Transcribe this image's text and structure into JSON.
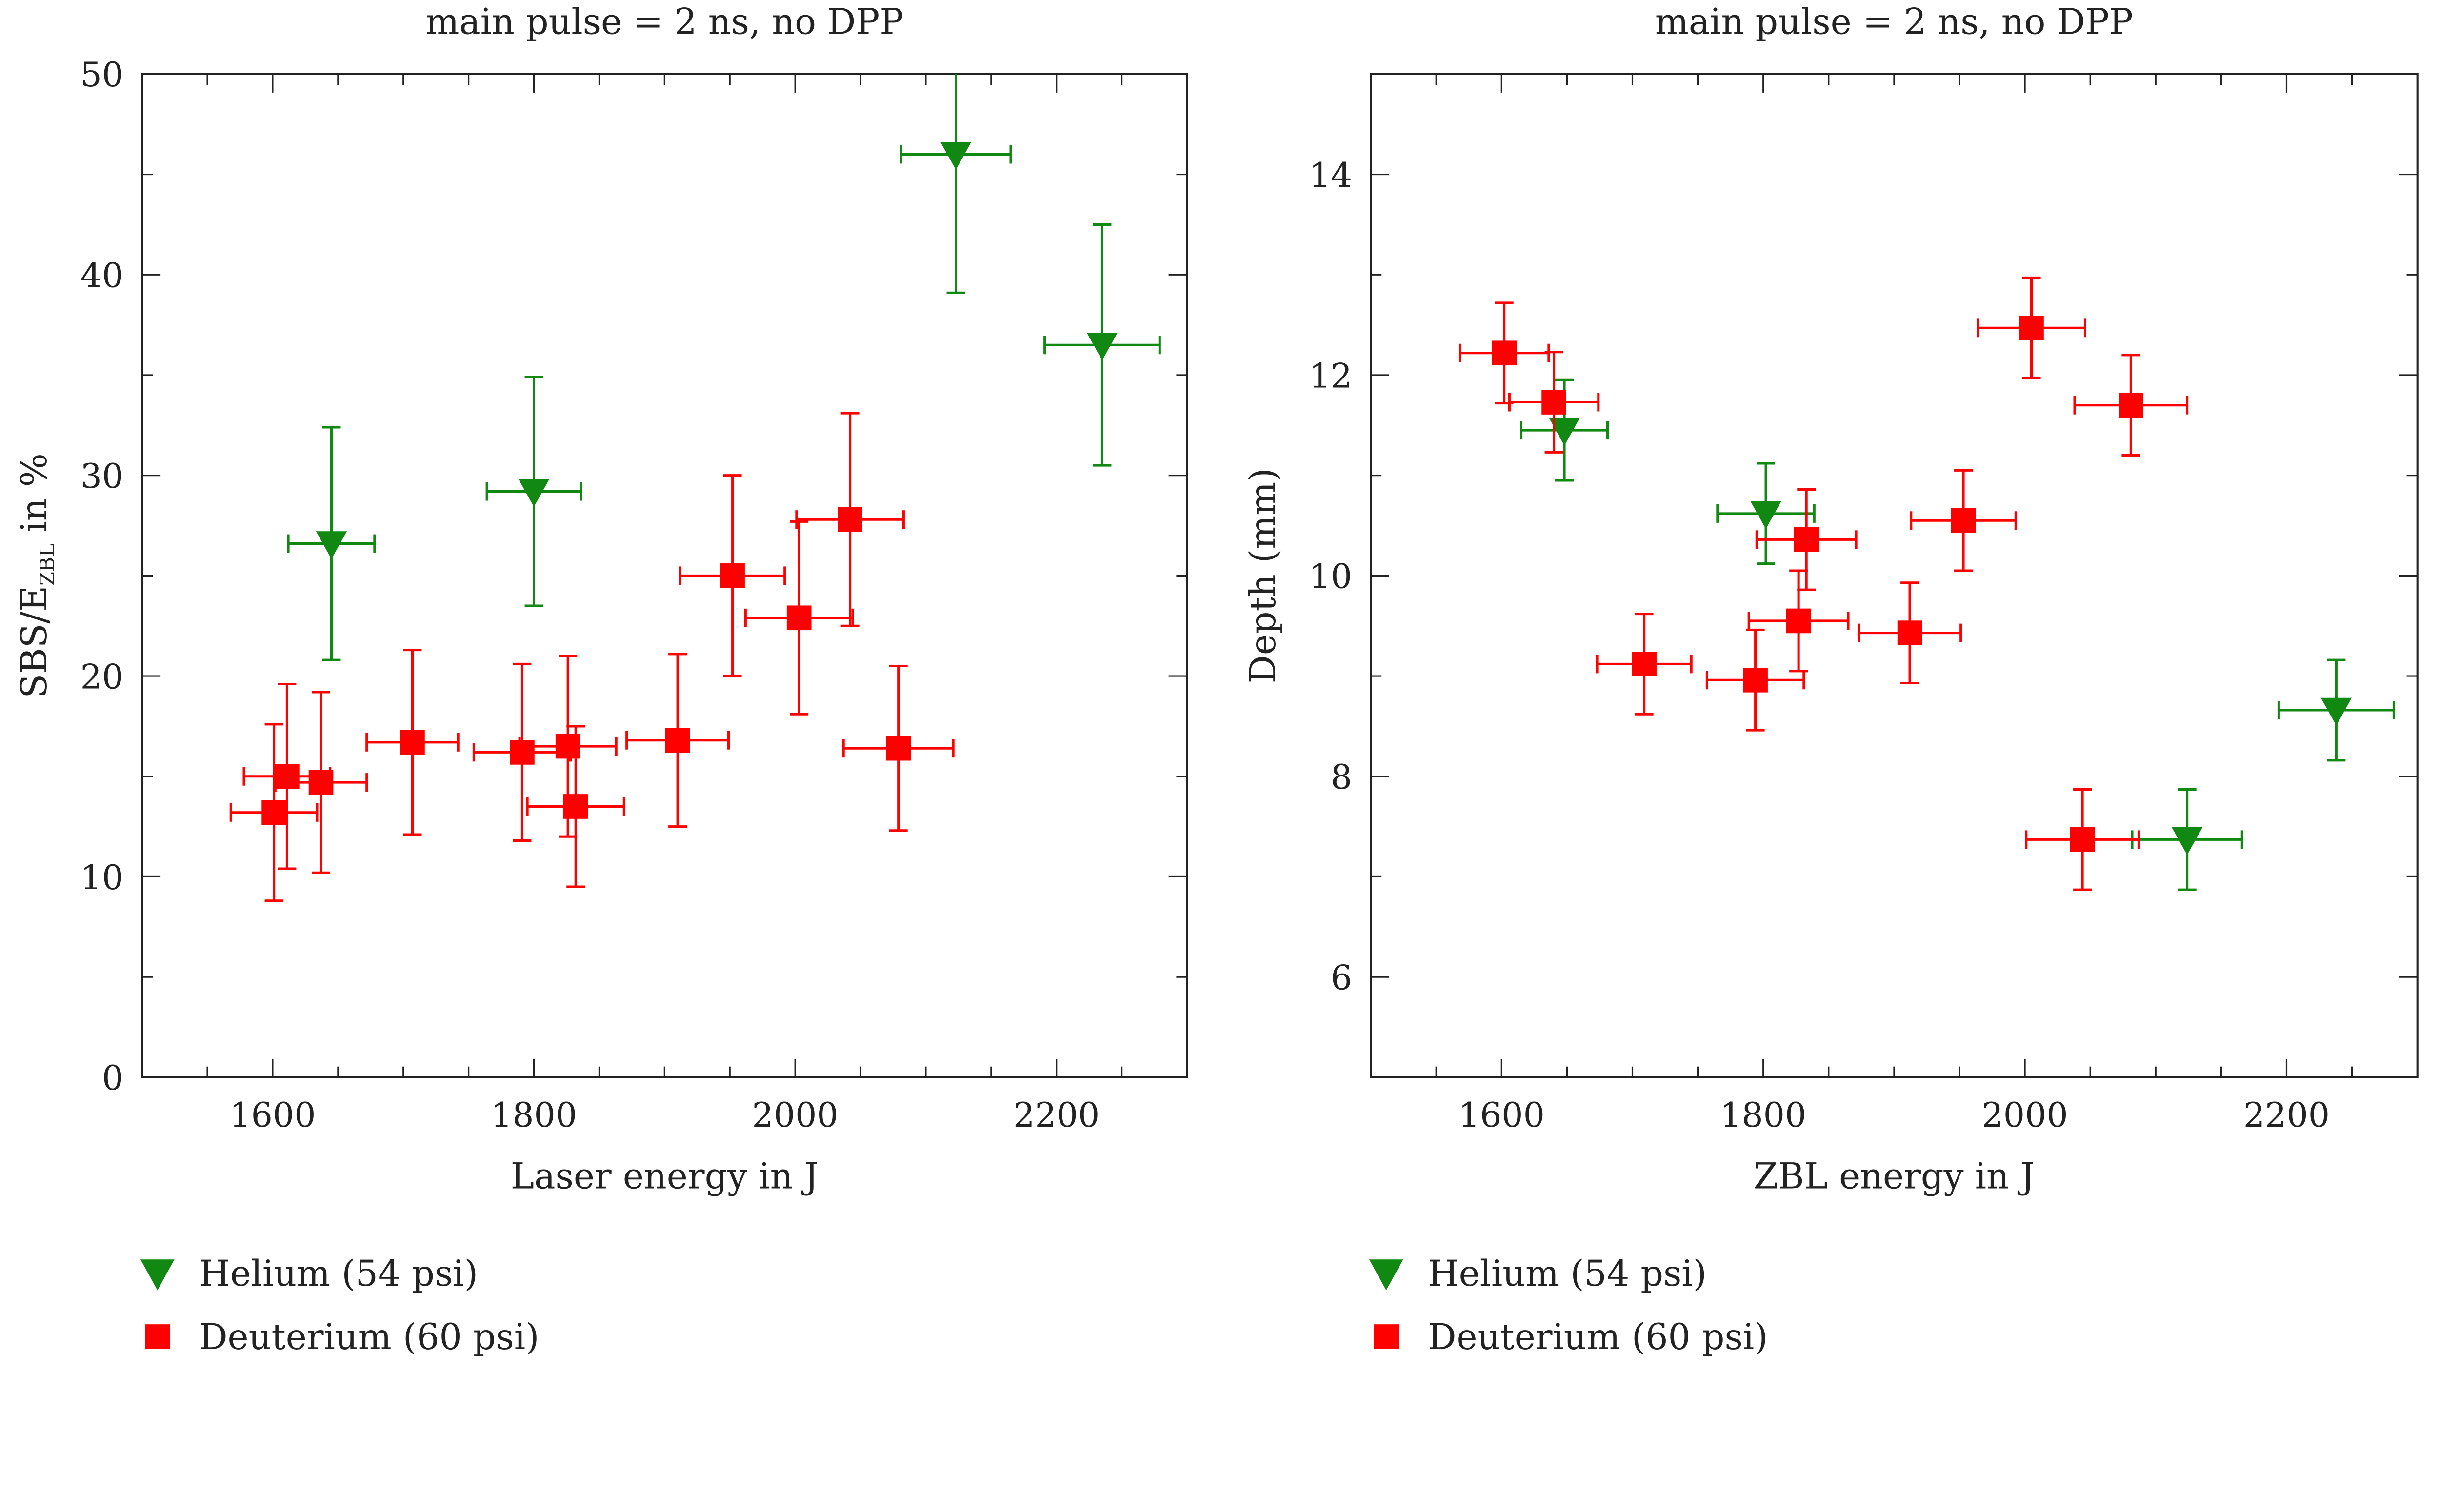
{
  "chart_data": [
    {
      "type": "scatter",
      "title": "main pulse = 2 ns, no DPP",
      "xlabel": "Laser energy in J",
      "ylabel": "SBS/E",
      "ylabel_sub": "ZBL",
      "ylabel_suffix": " in %",
      "xlim": [
        1500,
        2300
      ],
      "ylim": [
        0,
        50
      ],
      "xticks": [
        1600,
        1800,
        2000,
        2200
      ],
      "yticks": [
        0,
        10,
        20,
        30,
        40,
        50
      ],
      "xminor": 50,
      "yminor": 5,
      "grid": false,
      "legend_placement": "below",
      "series": [
        {
          "name": "Helium (54 psi)",
          "marker": "triangle-down",
          "color": "#118811",
          "points": [
            {
              "x": 1645,
              "y": 26.6,
              "xerr": 33,
              "yerr": 5.8
            },
            {
              "x": 1800,
              "y": 29.2,
              "xerr": 36,
              "yerr": 5.7
            },
            {
              "x": 2123,
              "y": 46.0,
              "xerr": 42,
              "yerr": 6.9
            },
            {
              "x": 2235,
              "y": 36.5,
              "xerr": 44,
              "yerr": 6.0
            }
          ]
        },
        {
          "name": "Deuterium (60 psi)",
          "marker": "square",
          "color": "#ff0000",
          "points": [
            {
              "x": 1601,
              "y": 13.2,
              "xerr": 33,
              "yerr": 4.4
            },
            {
              "x": 1611,
              "y": 15.0,
              "xerr": 33,
              "yerr": 4.6
            },
            {
              "x": 1637,
              "y": 14.7,
              "xerr": 35,
              "yerr": 4.5
            },
            {
              "x": 1707,
              "y": 16.7,
              "xerr": 35,
              "yerr": 4.6
            },
            {
              "x": 1791,
              "y": 16.2,
              "xerr": 37,
              "yerr": 4.4
            },
            {
              "x": 1826,
              "y": 16.5,
              "xerr": 37,
              "yerr": 4.5
            },
            {
              "x": 1832,
              "y": 13.5,
              "xerr": 37,
              "yerr": 4.0
            },
            {
              "x": 1910,
              "y": 16.8,
              "xerr": 39,
              "yerr": 4.3
            },
            {
              "x": 1952,
              "y": 25.0,
              "xerr": 40,
              "yerr": 5.0
            },
            {
              "x": 2003,
              "y": 22.9,
              "xerr": 41,
              "yerr": 4.8
            },
            {
              "x": 2042,
              "y": 27.8,
              "xerr": 41,
              "yerr": 5.3
            },
            {
              "x": 2079,
              "y": 16.4,
              "xerr": 42,
              "yerr": 4.1
            }
          ]
        }
      ]
    },
    {
      "type": "scatter",
      "title": "main pulse = 2 ns, no DPP",
      "xlabel": "ZBL energy in J",
      "ylabel": "Depth (mm)",
      "ylabel_sub": "",
      "ylabel_suffix": "",
      "xlim": [
        1500,
        2300
      ],
      "ylim": [
        5,
        15
      ],
      "xticks": [
        1600,
        1800,
        2000,
        2200
      ],
      "yticks": [
        6,
        8,
        10,
        12,
        14
      ],
      "xminor": 50,
      "yminor": 1,
      "grid": false,
      "legend_placement": "below",
      "series": [
        {
          "name": "Helium (54 psi)",
          "marker": "triangle-down",
          "color": "#118811",
          "points": [
            {
              "x": 1648,
              "y": 11.45,
              "xerr": 33,
              "yerr": 0.5
            },
            {
              "x": 1802,
              "y": 10.62,
              "xerr": 37,
              "yerr": 0.5
            },
            {
              "x": 2124,
              "y": 7.37,
              "xerr": 42,
              "yerr": 0.5
            },
            {
              "x": 2238,
              "y": 8.66,
              "xerr": 44,
              "yerr": 0.5
            }
          ]
        },
        {
          "name": "Deuterium (60 psi)",
          "marker": "square",
          "color": "#ff0000",
          "points": [
            {
              "x": 1602,
              "y": 12.22,
              "xerr": 34,
              "yerr": 0.5
            },
            {
              "x": 1640,
              "y": 11.73,
              "xerr": 34,
              "yerr": 0.5
            },
            {
              "x": 1709,
              "y": 9.12,
              "xerr": 36,
              "yerr": 0.5
            },
            {
              "x": 1794,
              "y": 8.96,
              "xerr": 37,
              "yerr": 0.5
            },
            {
              "x": 1827,
              "y": 9.55,
              "xerr": 38,
              "yerr": 0.5
            },
            {
              "x": 1833,
              "y": 10.36,
              "xerr": 38,
              "yerr": 0.5
            },
            {
              "x": 1912,
              "y": 9.43,
              "xerr": 39,
              "yerr": 0.5
            },
            {
              "x": 1953,
              "y": 10.55,
              "xerr": 40,
              "yerr": 0.5
            },
            {
              "x": 2005,
              "y": 12.47,
              "xerr": 41,
              "yerr": 0.5
            },
            {
              "x": 2044,
              "y": 7.37,
              "xerr": 43,
              "yerr": 0.5
            },
            {
              "x": 2081,
              "y": 11.7,
              "xerr": 43,
              "yerr": 0.5
            }
          ]
        }
      ]
    }
  ]
}
